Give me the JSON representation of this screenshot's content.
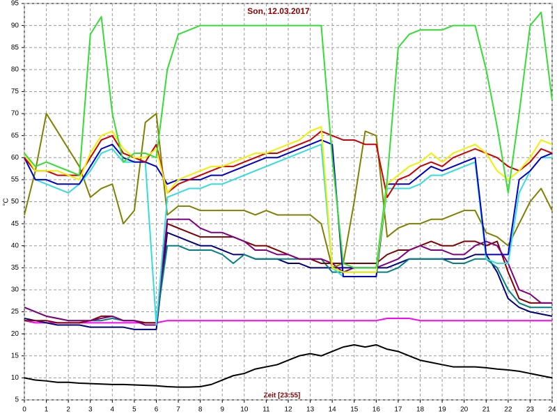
{
  "chart_data": {
    "type": "line",
    "title": "Son, 12.03.2017",
    "x_label": "Zeit [23:55]",
    "y_label": "°C",
    "xlim": [
      0,
      24
    ],
    "ylim": [
      5,
      95
    ],
    "xticks": [
      0,
      1,
      2,
      3,
      4,
      5,
      6,
      7,
      8,
      9,
      10,
      11,
      12,
      13,
      14,
      15,
      16,
      17,
      18,
      19,
      20,
      21,
      22,
      23,
      24
    ],
    "yticks": [
      5,
      10,
      15,
      20,
      25,
      30,
      35,
      40,
      45,
      50,
      55,
      60,
      65,
      70,
      75,
      80,
      85,
      90,
      95
    ],
    "grid": true,
    "x": [
      0,
      0.5,
      1,
      1.5,
      2,
      2.5,
      3,
      3.5,
      4,
      4.5,
      5,
      5.5,
      6,
      6.5,
      7,
      7.5,
      8,
      8.5,
      9,
      9.5,
      10,
      10.5,
      11,
      11.5,
      12,
      12.5,
      13,
      13.5,
      14,
      14.5,
      15,
      15.5,
      16,
      16.5,
      17,
      17.5,
      18,
      18.5,
      19,
      19.5,
      20,
      20.5,
      21,
      21.5,
      22,
      22.5,
      23,
      23.5,
      24
    ],
    "series": [
      {
        "color": "#000000",
        "values": [
          10,
          9.5,
          9.3,
          9,
          9,
          8.8,
          8.7,
          8.6,
          8.5,
          8.5,
          8.4,
          8.3,
          8.2,
          8,
          7.9,
          7.9,
          8,
          8.5,
          9.5,
          10.5,
          11,
          12,
          12.5,
          13,
          14,
          15,
          15.5,
          15,
          16,
          17,
          17.5,
          17,
          17.5,
          16.5,
          16,
          15,
          14,
          13.5,
          13,
          12.5,
          12.5,
          12.5,
          12.3,
          12,
          11.8,
          11.5,
          11,
          10.5,
          10
        ]
      },
      {
        "color": "#ff00ff",
        "values": [
          23,
          22.5,
          22.5,
          22.5,
          22.5,
          22.5,
          22.5,
          22.5,
          22.5,
          22.5,
          22.5,
          22.5,
          22.5,
          23,
          23,
          23,
          23,
          23,
          23,
          23,
          23,
          23,
          23,
          23,
          23,
          23,
          23,
          23,
          23,
          23,
          23,
          23,
          23,
          23.5,
          23.5,
          23.5,
          23,
          23,
          23,
          23,
          23,
          23,
          23,
          23,
          23,
          23,
          23,
          23,
          23
        ]
      },
      {
        "color": "#000080",
        "values": [
          23.5,
          23,
          22.5,
          22,
          22,
          22,
          21.5,
          21.5,
          21.5,
          21.5,
          21,
          21,
          21,
          43,
          42,
          41,
          40,
          40,
          39,
          38,
          38,
          37,
          37,
          37,
          36,
          36,
          35,
          35,
          35,
          35,
          35,
          35,
          35,
          35,
          36,
          37,
          37,
          37,
          37,
          37,
          37,
          38,
          38,
          34,
          28,
          26,
          25,
          24.5,
          24
        ]
      },
      {
        "color": "#008080",
        "values": [
          26,
          25,
          24,
          23.5,
          23,
          23,
          23,
          23,
          23.5,
          23,
          23,
          22.5,
          22.5,
          40,
          40,
          39,
          39,
          39,
          38,
          36,
          38,
          37,
          37,
          37,
          37,
          37,
          37,
          37,
          34,
          34,
          34,
          34,
          34,
          34,
          35,
          37,
          37,
          37,
          37,
          36,
          36,
          37,
          37,
          35,
          30,
          27,
          26,
          26,
          26
        ]
      },
      {
        "color": "#800000",
        "values": [
          23,
          23,
          23,
          22.5,
          22.5,
          22.5,
          23,
          24,
          24,
          23,
          23,
          22.5,
          22.5,
          45,
          44,
          43,
          42,
          42,
          42,
          42,
          41,
          40,
          40,
          39,
          38,
          37,
          37,
          36,
          36,
          36,
          36,
          36,
          36,
          38,
          39,
          39,
          40,
          41,
          40,
          40,
          41,
          41,
          40,
          41,
          34,
          28,
          27,
          27,
          27
        ]
      },
      {
        "color": "#800080",
        "values": [
          26,
          25,
          24,
          23.5,
          23,
          23,
          23,
          23.5,
          24,
          23,
          23,
          22,
          22,
          46,
          46,
          46,
          44,
          43,
          43,
          42,
          41,
          39,
          39,
          38,
          38,
          37,
          37,
          37,
          36,
          34,
          35,
          35,
          35,
          36,
          37,
          39,
          40,
          39,
          39,
          38,
          38,
          40,
          41,
          40,
          36,
          30,
          29,
          27,
          27
        ]
      },
      {
        "color": "#808000",
        "values": [
          47,
          57,
          70,
          66,
          62,
          58,
          51,
          53,
          54,
          45,
          48,
          68,
          70,
          47,
          49,
          49,
          48,
          48,
          48,
          48,
          48,
          47,
          48,
          47,
          47,
          47,
          47,
          45,
          35,
          36,
          50,
          66,
          65,
          42,
          44,
          45,
          45,
          46,
          46,
          47,
          48,
          48,
          43,
          42,
          40,
          45,
          50,
          53,
          48
        ]
      },
      {
        "color": "#33dddd",
        "values": [
          60,
          55,
          54,
          53,
          52,
          54,
          57,
          61,
          62,
          59,
          59,
          59,
          22,
          51,
          52,
          53,
          53,
          54,
          54,
          55,
          56,
          57,
          58,
          59,
          60,
          61,
          62,
          63,
          35,
          33,
          33,
          33,
          33,
          53,
          53,
          53,
          54,
          56,
          56,
          57,
          58,
          59,
          37,
          36,
          36,
          52,
          57,
          60,
          60
        ]
      },
      {
        "color": "#0000cc",
        "values": [
          60,
          55,
          55,
          54,
          54,
          54,
          58,
          62,
          63,
          60,
          59,
          59,
          58,
          54,
          55,
          55,
          55,
          56,
          56,
          57,
          58,
          59,
          60,
          60,
          61,
          62,
          63,
          64,
          63,
          33,
          33,
          33,
          33,
          54,
          54,
          54,
          56,
          58,
          57,
          58,
          59,
          60,
          38,
          38,
          38,
          55,
          57,
          60,
          61
        ]
      },
      {
        "color": "#cc0000",
        "values": [
          60,
          57,
          57,
          56,
          56,
          56,
          60,
          64,
          65,
          61,
          60,
          59,
          63,
          52,
          54,
          55,
          56,
          57,
          58,
          58,
          59,
          60,
          61,
          61,
          62,
          63,
          64,
          66,
          65,
          64,
          64,
          63,
          63,
          51,
          55,
          56,
          58,
          59,
          58,
          60,
          61,
          62,
          61,
          60,
          58,
          57,
          59,
          62,
          61
        ]
      },
      {
        "color": "#f0f000",
        "values": [
          61,
          57,
          57,
          57,
          56,
          55,
          61,
          65,
          66,
          62,
          60,
          60,
          62,
          52,
          55,
          56,
          57,
          58,
          58,
          59,
          60,
          61,
          61,
          62,
          63,
          64,
          66,
          67,
          35,
          34,
          34,
          34,
          34,
          54,
          56,
          58,
          59,
          61,
          59,
          61,
          62,
          63,
          61,
          57,
          55,
          57,
          60,
          64,
          63
        ]
      },
      {
        "color": "#33dd33",
        "values": [
          61,
          58,
          59,
          58,
          57,
          56,
          88,
          92,
          70,
          59,
          61,
          61,
          60,
          80,
          88,
          89,
          90,
          90,
          90,
          90,
          90,
          90,
          90,
          90,
          90,
          90,
          90,
          90,
          60,
          36,
          35,
          35,
          35,
          55,
          85,
          88,
          89,
          89,
          89,
          90,
          90,
          90,
          80,
          67,
          52,
          70,
          90,
          93,
          73
        ]
      }
    ]
  }
}
